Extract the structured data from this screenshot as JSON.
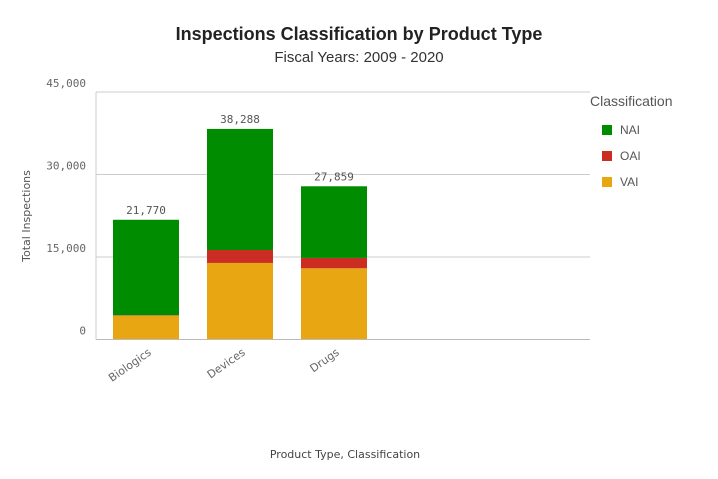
{
  "chart_data": {
    "type": "bar",
    "stacked": true,
    "title": "Inspections Classification by Product Type",
    "subtitle": "Fiscal Years: 2009 - 2020",
    "xlabel": "Product Type,  Classification",
    "ylabel": "Total Inspections",
    "ylim": [
      0,
      45000
    ],
    "yticks": [
      0,
      15000,
      30000,
      45000
    ],
    "ytick_labels": [
      "0",
      "15,000",
      "30,000",
      "45,000"
    ],
    "categories": [
      "Biologics",
      "Devices",
      "Drugs"
    ],
    "series": [
      {
        "name": "VAI",
        "color": "#e8a712",
        "values": [
          4340,
          13920,
          12950
        ]
      },
      {
        "name": "OAI",
        "color": "#cc2d22",
        "values": [
          80,
          2350,
          1880
        ]
      },
      {
        "name": "NAI",
        "color": "#008c00",
        "values": [
          17350,
          22018,
          13029
        ]
      }
    ],
    "totals": [
      "21,770",
      "38,288",
      "27,859"
    ],
    "legend": {
      "title": "Classification",
      "position": "right",
      "items": [
        {
          "name": "NAI",
          "color": "#008c00"
        },
        {
          "name": "OAI",
          "color": "#cc2d22"
        },
        {
          "name": "VAI",
          "color": "#e8a712"
        }
      ]
    },
    "grid": true
  }
}
